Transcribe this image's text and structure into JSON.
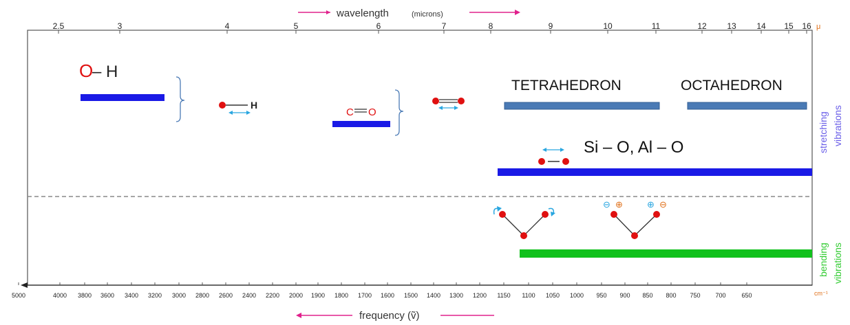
{
  "top_axis": {
    "title_main": "wavelength",
    "title_unit": "(microns)",
    "ticks": [
      "2.5",
      "3",
      "4",
      "5",
      "6",
      "7",
      "8",
      "9",
      "10",
      "11",
      "12",
      "13",
      "14",
      "15",
      "16"
    ],
    "unit": "μ"
  },
  "bottom_axis": {
    "title": "frequency (ṽ)",
    "ticks": [
      "5000",
      "4000",
      "3800",
      "3600",
      "3400",
      "3200",
      "3000",
      "2800",
      "2600",
      "2400",
      "2200",
      "2000",
      "1900",
      "1800",
      "1700",
      "1600",
      "1500",
      "1400",
      "1300",
      "1200",
      "1150",
      "1100",
      "1050",
      "1000",
      "950",
      "900",
      "850",
      "800",
      "750",
      "700",
      "650"
    ],
    "unit": "cm⁻¹"
  },
  "labels": {
    "oh_o": "O",
    "oh_rest": " – H",
    "h_small": "H",
    "co_c": "C",
    "co_o": "O",
    "tetrahedron": "TETRAHEDRON",
    "octahedron": "OCTAHEDRON",
    "si_o": "Si – O, Al – O",
    "minus": "⊖",
    "plus": "⊕"
  },
  "side_labels": {
    "stretching_1": "stretching",
    "stretching_2": "vibrations",
    "bending_1": "bending",
    "bending_2": "vibrations"
  },
  "colors": {
    "blue_bar": "#1a1ae6",
    "steel_bar": "#4a7ab5",
    "green_bar": "#11c11d",
    "atom_red": "#e01010",
    "arrow_cyan": "#29a6e0",
    "pink_arrow": "#e0208c",
    "side_blue": "#6a5ee8",
    "side_green": "#33cc33",
    "unit_orange": "#e0701a"
  }
}
